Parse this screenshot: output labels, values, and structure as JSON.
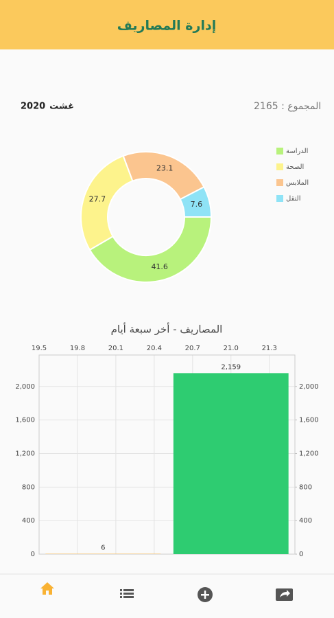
{
  "header": {
    "title": "إدارة المصاريف"
  },
  "summary": {
    "total_text": "المجموع : 2165",
    "month": "غشت",
    "year": 2020
  },
  "chart_data": [
    {
      "type": "pie",
      "categories": [
        "الدراسة",
        "الصحة",
        "الملابس",
        "النقل"
      ],
      "values": [
        41.6,
        27.7,
        23.1,
        7.6
      ],
      "colors": [
        "#b8f27c",
        "#fdf38c",
        "#fbc58f",
        "#8fe3f6"
      ],
      "legend": "right"
    },
    {
      "type": "bar",
      "title": "المصاريف - أخر سبعة أيام",
      "x": [
        20,
        21
      ],
      "values": [
        6,
        2159
      ],
      "value_labels": [
        "6",
        "2,159"
      ],
      "colors": [
        "#f7c87a",
        "#2ecc71"
      ],
      "xlim": [
        19.5,
        21.5
      ],
      "xticks": [
        19.5,
        19.8,
        20.1,
        20.4,
        20.7,
        {
          "value": 21,
          "label": "21.0"
        },
        21.3
      ],
      "ylim": [
        0,
        2375
      ],
      "yticks": [
        0,
        400,
        800,
        {
          "value": 1200,
          "label": "1,200"
        },
        {
          "value": 1600,
          "label": "1,600"
        },
        {
          "value": 2000,
          "label": "2,000"
        }
      ],
      "y2lim": [
        0,
        2375
      ],
      "y2ticks": [
        0,
        400,
        800,
        {
          "value": 1200,
          "label": "1,200"
        },
        {
          "value": 1600,
          "label": "1,600"
        },
        {
          "value": 2000,
          "label": "2,000"
        }
      ],
      "grid": true
    }
  ]
}
